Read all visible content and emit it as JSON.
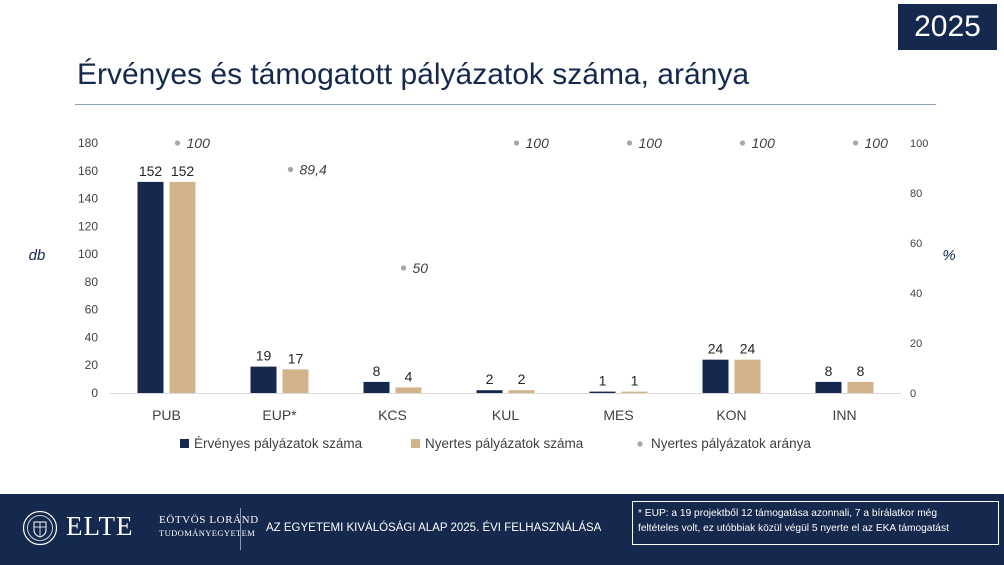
{
  "year_badge": "2025",
  "title": "Érvényes és támogatott pályázatok száma, aránya",
  "footer": {
    "logo_word": "ELTE",
    "logo_line1": "EÖTVÖS LORÁND",
    "logo_line2": "TUDOMÁNYEGYETEM",
    "text": "AZ EGYETEMI KIVÁLÓSÁGI ALAP 2025. ÉVI FELHASZNÁLÁSA",
    "note_line1": "* EUP: a 19 projektből 12 támogatása azonnali, 7 a bírálatkor még",
    "note_line2": "feltételes volt, ez utóbbiak közül végül 5 nyerte el az EKA támogatást"
  },
  "colors": {
    "navy": "#14294d",
    "tan": "#d3b38b",
    "dot": "#a6a6a6"
  },
  "chart_data": {
    "type": "bar",
    "categories": [
      "PUB",
      "EUP*",
      "KCS",
      "KUL",
      "MES",
      "KON",
      "INN"
    ],
    "series": [
      {
        "name": "Érvényes pályázatok száma",
        "type": "bar",
        "axis": "left",
        "color": "#14294d",
        "values": [
          152,
          19,
          8,
          2,
          1,
          24,
          8
        ],
        "labels": [
          "152",
          "19",
          "8",
          "2",
          "1",
          "24",
          "8"
        ]
      },
      {
        "name": "Nyertes pályázatok száma",
        "type": "bar",
        "axis": "left",
        "color": "#d3b38b",
        "values": [
          152,
          17,
          4,
          2,
          1,
          24,
          8
        ],
        "labels": [
          "152",
          "17",
          "4",
          "2",
          "1",
          "24",
          "8"
        ]
      },
      {
        "name": "Nyertes pályázatok aránya",
        "type": "scatter",
        "axis": "right",
        "color": "#a6a6a6",
        "values": [
          100,
          89.4,
          50,
          100,
          100,
          100,
          100
        ],
        "labels": [
          "100",
          "89,4",
          "50",
          "100",
          "100",
          "100",
          "100"
        ]
      }
    ],
    "ylabel": "db",
    "y2label": "%",
    "ylim": [
      0,
      180
    ],
    "yticks": [
      0,
      20,
      40,
      60,
      80,
      100,
      120,
      140,
      160,
      180
    ],
    "y2lim": [
      0,
      100
    ],
    "y2ticks": [
      0,
      20,
      40,
      60,
      80,
      100
    ],
    "legend": "bottom",
    "grid": false
  }
}
